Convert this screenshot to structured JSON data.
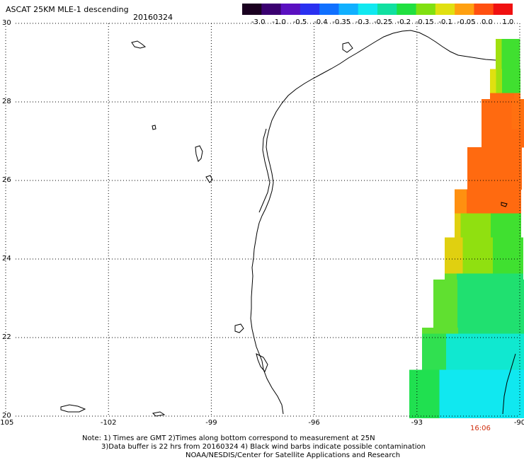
{
  "header": {
    "title": "ASCAT 25KM MLE-1 descending",
    "date": "20160324"
  },
  "color_scale": {
    "labels": [
      "-3.0",
      "-1.0",
      "-0.5",
      "-0.4",
      "-0.35",
      "-0.3",
      "-0.25",
      "-0.2",
      "-0.15",
      "-0.1",
      "-0.05",
      "0.0",
      "1.0"
    ],
    "colors": [
      "#1a0020",
      "#3a0070",
      "#5a10c0",
      "#2a30f0",
      "#1070ff",
      "#10b0ff",
      "#10e8f0",
      "#10e0a0",
      "#20e040",
      "#80e010",
      "#e0e010",
      "#ffa010",
      "#ff5010",
      "#f01010"
    ]
  },
  "map": {
    "lat_labels": [
      "30",
      "28",
      "26",
      "24",
      "22",
      "20"
    ],
    "lon_labels": [
      "-105",
      "-102",
      "-99",
      "-96",
      "-93",
      "-90"
    ],
    "lat_range": [
      20,
      30
    ],
    "lon_range": [
      -105,
      -90
    ],
    "grid": "dotted",
    "time_label": "16:06",
    "time_color": "#d03010"
  },
  "notes": {
    "line1": "Note: 1) Times are GMT 2)Times along bottom correspond to measurement at 25N",
    "line2": "3)Data buffer is 22 hrs from 20160324 4) Black wind barbs indicate possible contamination",
    "line3": "NOAA/NESDIS/Center for Satellite Applications and Research"
  }
}
